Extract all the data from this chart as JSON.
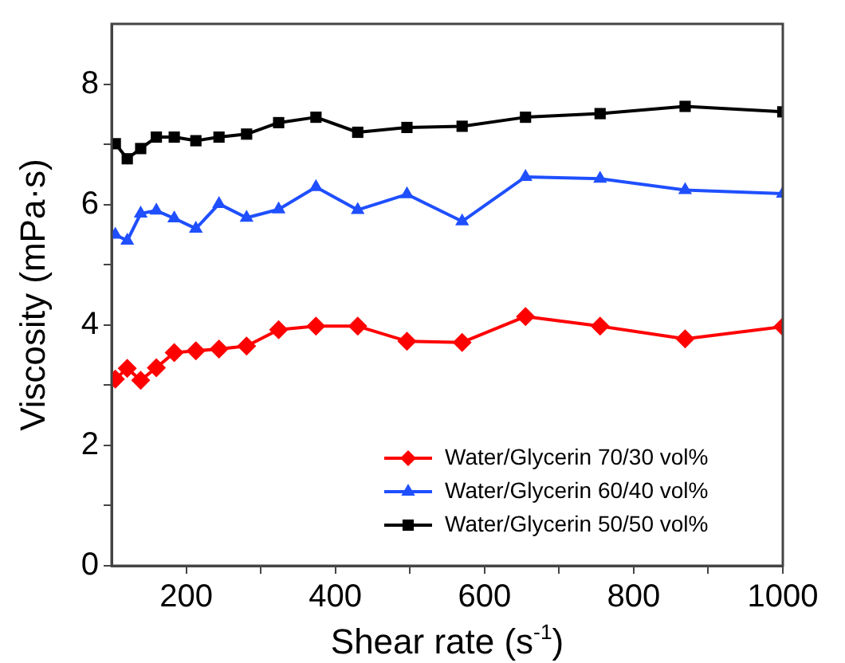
{
  "chart_data": {
    "type": "line",
    "xlabel": "Shear rate (s$^{-1}$)",
    "ylabel": "Viscosity (mPa·s)",
    "x": [
      105,
      121,
      139,
      160,
      184,
      213,
      244,
      281,
      324,
      374,
      430,
      496,
      570,
      655,
      755,
      869,
      1000
    ],
    "series": [
      {
        "name": "Water/Glycerin 70/30 vol%",
        "color": "#ff0000",
        "marker": "diamond",
        "values": [
          3.1,
          3.28,
          3.08,
          3.29,
          3.54,
          3.57,
          3.6,
          3.65,
          3.92,
          3.98,
          3.98,
          3.73,
          3.71,
          4.14,
          3.98,
          3.77,
          3.97
        ]
      },
      {
        "name": "Water/Glycerin 60/40 vol%",
        "color": "#1f4fff",
        "marker": "triangle",
        "values": [
          5.5,
          5.4,
          5.85,
          5.9,
          5.77,
          5.6,
          6.01,
          5.78,
          5.92,
          6.29,
          5.91,
          6.17,
          5.72,
          6.46,
          6.43,
          6.24,
          6.18
        ]
      },
      {
        "name": "Water/Glycerin 50/50 vol%",
        "color": "#000000",
        "marker": "square",
        "values": [
          7.01,
          6.76,
          6.93,
          7.12,
          7.12,
          7.06,
          7.12,
          7.17,
          7.36,
          7.45,
          7.2,
          7.28,
          7.3,
          7.45,
          7.51,
          7.63,
          7.54
        ]
      }
    ],
    "xlim": [
      100,
      1000
    ],
    "xticks": [
      200,
      {
        "value": 300,
        "label": null
      },
      400,
      {
        "value": 500,
        "label": null
      },
      600,
      {
        "value": 700,
        "label": null
      },
      800,
      {
        "value": 900,
        "label": null
      },
      1000
    ],
    "ylim": [
      0,
      9
    ],
    "yticks": [
      0,
      {
        "value": 1,
        "label": null
      },
      2,
      {
        "value": 3,
        "label": null
      },
      4,
      {
        "value": 5,
        "label": null
      },
      6,
      {
        "value": 7,
        "label": null
      },
      8
    ],
    "grid": false,
    "legend": "bottom right",
    "line_style": "solid"
  }
}
